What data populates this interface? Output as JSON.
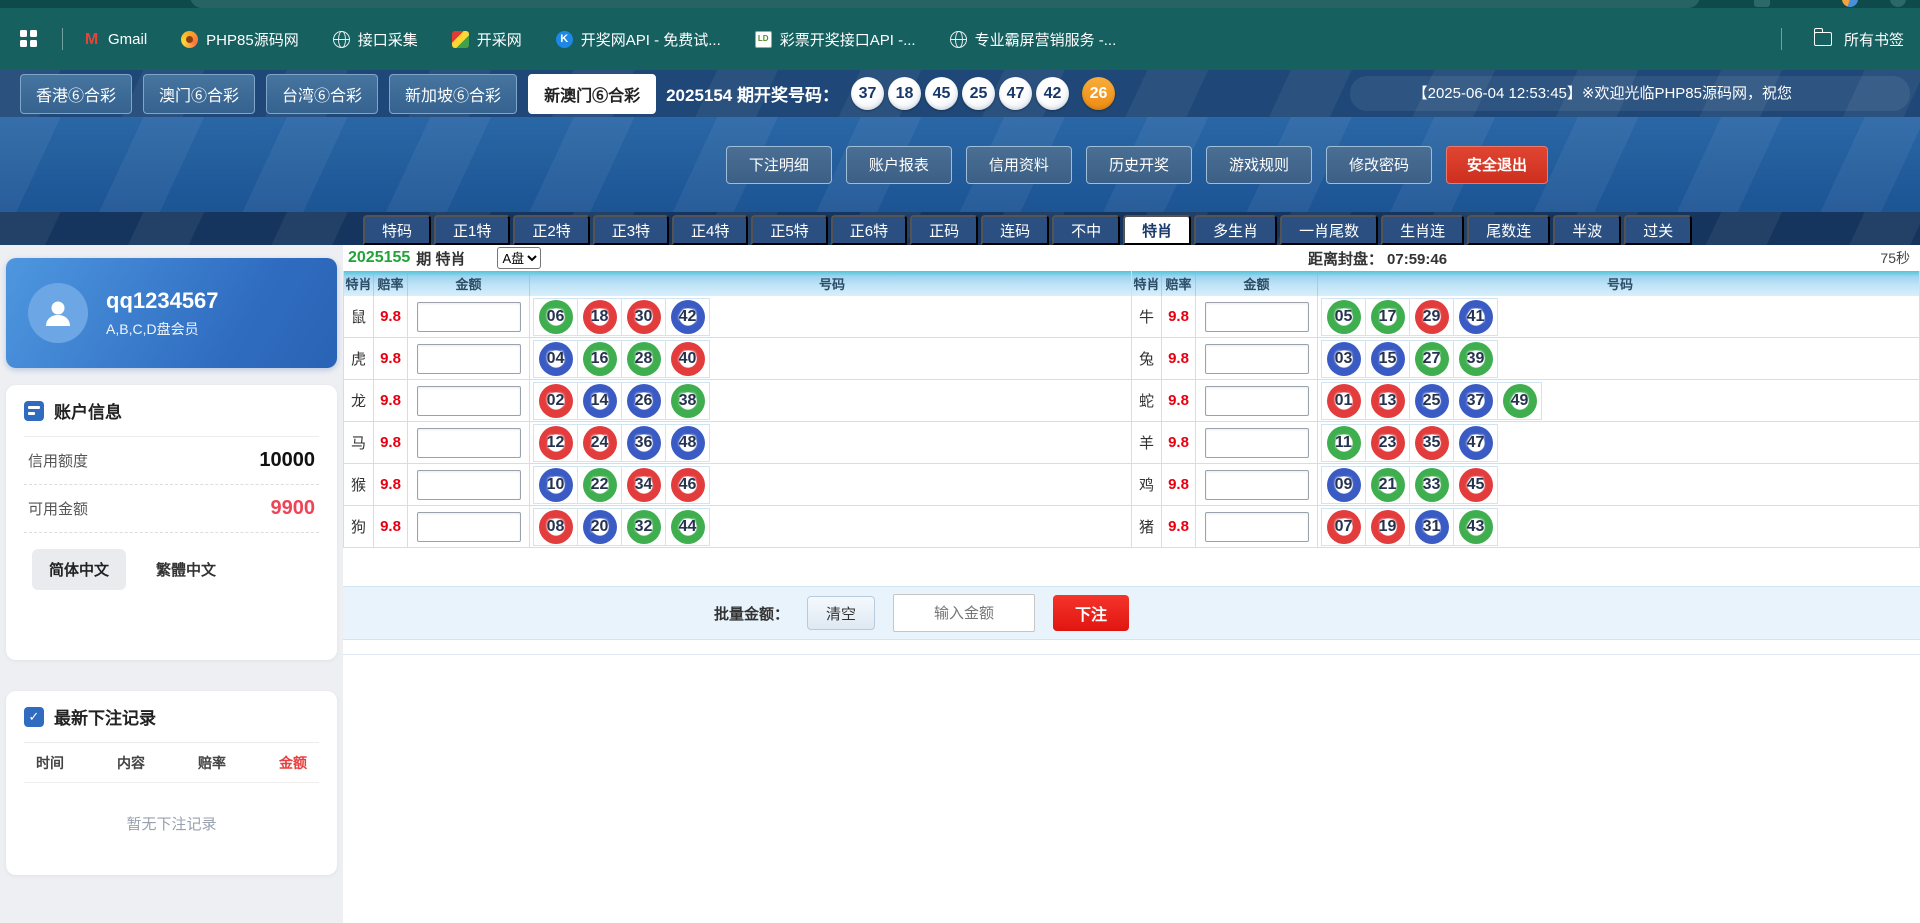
{
  "browser": {
    "bookmarks": [
      {
        "label": "Gmail",
        "icon": "gmail-icon"
      },
      {
        "label": "PHP85源码网",
        "icon": "php85-icon"
      },
      {
        "label": "接口采集",
        "icon": "globe-icon"
      },
      {
        "label": "开采网",
        "icon": "kaicai-icon"
      },
      {
        "label": "开奖网API - 免费试...",
        "icon": "kaijiang-icon"
      },
      {
        "label": "彩票开奖接口API -...",
        "icon": "ld-icon"
      },
      {
        "label": "专业霸屏营销服务 -...",
        "icon": "globe-icon"
      }
    ],
    "all_bookmarks": "所有书签"
  },
  "lottery_nav": {
    "tabs": [
      {
        "label": "香港⑥合彩",
        "active": false
      },
      {
        "label": "澳门⑥合彩",
        "active": false
      },
      {
        "label": "台湾⑥合彩",
        "active": false
      },
      {
        "label": "新加坡⑥合彩",
        "active": false
      },
      {
        "label": "新澳门⑥合彩",
        "active": true
      }
    ],
    "draw_label": "2025154 期开奖号码：",
    "numbers": [
      {
        "value": "37",
        "special": false
      },
      {
        "value": "18",
        "special": false
      },
      {
        "value": "45",
        "special": false
      },
      {
        "value": "25",
        "special": false
      },
      {
        "value": "47",
        "special": false
      },
      {
        "value": "42",
        "special": false
      },
      {
        "value": "26",
        "special": true
      }
    ],
    "welcome": "【2025-06-04 12:53:45】※欢迎光临PHP85源码网，祝您"
  },
  "account_nav": {
    "buttons": [
      "下注明细",
      "账户报表",
      "信用资料",
      "历史开奖",
      "游戏规则",
      "修改密码"
    ],
    "logout": "安全退出"
  },
  "game_tabs": {
    "items": [
      "特码",
      "正1特",
      "正2特",
      "正3特",
      "正4特",
      "正5特",
      "正6特",
      "正码",
      "连码",
      "不中",
      "特肖",
      "多生肖",
      "一肖尾数",
      "生肖连",
      "尾数连",
      "半波",
      "过关"
    ],
    "active_index": 10
  },
  "sidebar": {
    "user": {
      "name": "qq1234567",
      "level": "A,B,C,D盘会员"
    },
    "account_info": {
      "title": "账户信息",
      "rows": [
        {
          "label": "信用额度",
          "value": "10000",
          "tone": "dark"
        },
        {
          "label": "可用金额",
          "value": "9900",
          "tone": "red"
        }
      ],
      "lang_simplified": "简体中文",
      "lang_traditional": "繁體中文"
    },
    "records": {
      "title": "最新下注记录",
      "columns": [
        "时间",
        "内容",
        "赔率",
        "金额"
      ],
      "empty": "暂无下注记录"
    }
  },
  "betting": {
    "period_no": "2025155",
    "period_label": "期 特肖",
    "plate": "A盘",
    "close_label": "距离封盘：",
    "close_time": "07:59:46",
    "refresh": "75秒",
    "headers": [
      "特肖",
      "赔率",
      "金额",
      "号码"
    ],
    "tables": {
      "left": [
        {
          "zodiac": "鼠",
          "odds": "9.8",
          "balls": [
            {
              "n": "06",
              "c": "green"
            },
            {
              "n": "18",
              "c": "red"
            },
            {
              "n": "30",
              "c": "red"
            },
            {
              "n": "42",
              "c": "blue"
            }
          ]
        },
        {
          "zodiac": "虎",
          "odds": "9.8",
          "balls": [
            {
              "n": "04",
              "c": "blue"
            },
            {
              "n": "16",
              "c": "green"
            },
            {
              "n": "28",
              "c": "green"
            },
            {
              "n": "40",
              "c": "red"
            }
          ]
        },
        {
          "zodiac": "龙",
          "odds": "9.8",
          "balls": [
            {
              "n": "02",
              "c": "red"
            },
            {
              "n": "14",
              "c": "blue"
            },
            {
              "n": "26",
              "c": "blue"
            },
            {
              "n": "38",
              "c": "green"
            }
          ]
        },
        {
          "zodiac": "马",
          "odds": "9.8",
          "balls": [
            {
              "n": "12",
              "c": "red"
            },
            {
              "n": "24",
              "c": "red"
            },
            {
              "n": "36",
              "c": "blue"
            },
            {
              "n": "48",
              "c": "blue"
            }
          ]
        },
        {
          "zodiac": "猴",
          "odds": "9.8",
          "balls": [
            {
              "n": "10",
              "c": "blue"
            },
            {
              "n": "22",
              "c": "green"
            },
            {
              "n": "34",
              "c": "red"
            },
            {
              "n": "46",
              "c": "red"
            }
          ]
        },
        {
          "zodiac": "狗",
          "odds": "9.8",
          "balls": [
            {
              "n": "08",
              "c": "red"
            },
            {
              "n": "20",
              "c": "blue"
            },
            {
              "n": "32",
              "c": "green"
            },
            {
              "n": "44",
              "c": "green"
            }
          ]
        }
      ],
      "right": [
        {
          "zodiac": "牛",
          "odds": "9.8",
          "balls": [
            {
              "n": "05",
              "c": "green"
            },
            {
              "n": "17",
              "c": "green"
            },
            {
              "n": "29",
              "c": "red"
            },
            {
              "n": "41",
              "c": "blue"
            }
          ]
        },
        {
          "zodiac": "兔",
          "odds": "9.8",
          "balls": [
            {
              "n": "03",
              "c": "blue"
            },
            {
              "n": "15",
              "c": "blue"
            },
            {
              "n": "27",
              "c": "green"
            },
            {
              "n": "39",
              "c": "green"
            }
          ]
        },
        {
          "zodiac": "蛇",
          "odds": "9.8",
          "balls": [
            {
              "n": "01",
              "c": "red"
            },
            {
              "n": "13",
              "c": "red"
            },
            {
              "n": "25",
              "c": "blue"
            },
            {
              "n": "37",
              "c": "blue"
            },
            {
              "n": "49",
              "c": "green"
            }
          ]
        },
        {
          "zodiac": "羊",
          "odds": "9.8",
          "balls": [
            {
              "n": "11",
              "c": "green"
            },
            {
              "n": "23",
              "c": "red"
            },
            {
              "n": "35",
              "c": "red"
            },
            {
              "n": "47",
              "c": "blue"
            }
          ]
        },
        {
          "zodiac": "鸡",
          "odds": "9.8",
          "balls": [
            {
              "n": "09",
              "c": "blue"
            },
            {
              "n": "21",
              "c": "green"
            },
            {
              "n": "33",
              "c": "green"
            },
            {
              "n": "45",
              "c": "red"
            }
          ]
        },
        {
          "zodiac": "猪",
          "odds": "9.8",
          "balls": [
            {
              "n": "07",
              "c": "red"
            },
            {
              "n": "19",
              "c": "red"
            },
            {
              "n": "31",
              "c": "blue"
            },
            {
              "n": "43",
              "c": "green"
            }
          ]
        }
      ]
    },
    "batch": {
      "label": "批量金额：",
      "clear": "清空",
      "placeholder": "输入金额",
      "submit": "下注"
    }
  },
  "colors": {
    "ball_red": "#e23c3c",
    "ball_blue": "#3b5bc4",
    "ball_green": "#3fae4e",
    "special_ball": "#ee8c13",
    "accent_red": "#e01511",
    "teal_bar": "#166060",
    "navy_band": "#1f4878"
  }
}
